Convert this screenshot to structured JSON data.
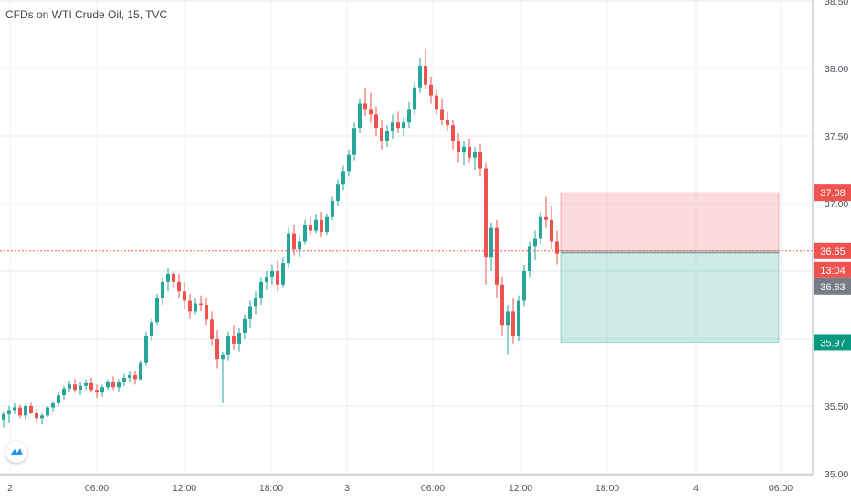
{
  "chart_data": {
    "type": "candlestick",
    "title": "CFDs on WTI Crude Oil, 15, TVC",
    "ylim": [
      35.0,
      38.5
    ],
    "y_ticks": [
      "35.00",
      "35.50",
      "36.00",
      "36.50",
      "37.00",
      "37.50",
      "38.00",
      "38.50"
    ],
    "x_ticks": [
      "2",
      "06:00",
      "12:00",
      "18:00",
      "3",
      "06:00",
      "12:00",
      "18:00",
      "4",
      "06:00"
    ],
    "current_price": "36.65",
    "countdown": "13:04",
    "close_price": "36.63",
    "position": {
      "stop_loss": "37.08",
      "entry": "36.65",
      "take_profit": "35.97"
    },
    "candles": [
      [
        35.4,
        35.46,
        35.34,
        35.44
      ],
      [
        35.44,
        35.5,
        35.38,
        35.47
      ],
      [
        35.47,
        35.52,
        35.44,
        35.49
      ],
      [
        35.49,
        35.51,
        35.41,
        35.43
      ],
      [
        35.43,
        35.52,
        35.4,
        35.5
      ],
      [
        35.5,
        35.53,
        35.44,
        35.45
      ],
      [
        35.45,
        35.48,
        35.38,
        35.41
      ],
      [
        35.41,
        35.45,
        35.37,
        35.43
      ],
      [
        35.43,
        35.5,
        35.42,
        35.49
      ],
      [
        35.49,
        35.54,
        35.46,
        35.52
      ],
      [
        35.52,
        35.6,
        35.5,
        35.58
      ],
      [
        35.58,
        35.65,
        35.55,
        35.63
      ],
      [
        35.63,
        35.69,
        35.6,
        35.66
      ],
      [
        35.66,
        35.7,
        35.6,
        35.62
      ],
      [
        35.62,
        35.68,
        35.58,
        35.65
      ],
      [
        35.65,
        35.7,
        35.62,
        35.67
      ],
      [
        35.67,
        35.71,
        35.6,
        35.62
      ],
      [
        35.62,
        35.66,
        35.56,
        35.6
      ],
      [
        35.6,
        35.66,
        35.57,
        35.64
      ],
      [
        35.64,
        35.7,
        35.62,
        35.68
      ],
      [
        35.68,
        35.72,
        35.62,
        35.64
      ],
      [
        35.64,
        35.7,
        35.61,
        35.68
      ],
      [
        35.68,
        35.74,
        35.65,
        35.71
      ],
      [
        35.71,
        35.76,
        35.68,
        35.73
      ],
      [
        35.73,
        35.76,
        35.66,
        35.7
      ],
      [
        35.7,
        35.84,
        35.69,
        35.82
      ],
      [
        35.82,
        36.05,
        35.8,
        36.02
      ],
      [
        36.02,
        36.15,
        35.98,
        36.12
      ],
      [
        36.12,
        36.33,
        36.1,
        36.3
      ],
      [
        36.3,
        36.45,
        36.25,
        36.42
      ],
      [
        36.42,
        36.52,
        36.35,
        36.48
      ],
      [
        36.48,
        36.5,
        36.38,
        36.42
      ],
      [
        36.42,
        36.48,
        36.3,
        36.35
      ],
      [
        36.35,
        36.42,
        36.22,
        36.28
      ],
      [
        36.28,
        36.33,
        36.15,
        36.2
      ],
      [
        36.2,
        36.3,
        36.18,
        36.26
      ],
      [
        36.26,
        36.32,
        36.2,
        36.25
      ],
      [
        36.25,
        36.3,
        36.1,
        36.14
      ],
      [
        36.14,
        36.2,
        35.95,
        36.0
      ],
      [
        36.0,
        36.06,
        35.78,
        35.85
      ],
      [
        35.85,
        35.9,
        35.52,
        35.88
      ],
      [
        35.88,
        36.05,
        35.84,
        36.02
      ],
      [
        36.02,
        36.1,
        35.92,
        35.96
      ],
      [
        35.96,
        36.08,
        35.9,
        36.04
      ],
      [
        36.04,
        36.18,
        36.0,
        36.15
      ],
      [
        36.15,
        36.28,
        36.08,
        36.24
      ],
      [
        36.24,
        36.35,
        36.18,
        36.3
      ],
      [
        36.3,
        36.45,
        36.25,
        36.42
      ],
      [
        36.42,
        36.5,
        36.36,
        36.46
      ],
      [
        36.46,
        36.55,
        36.4,
        36.5
      ],
      [
        36.5,
        36.58,
        36.35,
        36.4
      ],
      [
        36.4,
        36.6,
        36.38,
        36.56
      ],
      [
        36.56,
        36.82,
        36.52,
        36.78
      ],
      [
        36.78,
        36.84,
        36.62,
        36.66
      ],
      [
        36.66,
        36.76,
        36.6,
        36.72
      ],
      [
        36.72,
        36.88,
        36.7,
        36.84
      ],
      [
        36.84,
        36.9,
        36.76,
        36.8
      ],
      [
        36.8,
        36.92,
        36.78,
        36.88
      ],
      [
        36.88,
        36.94,
        36.75,
        36.79
      ],
      [
        36.79,
        36.92,
        36.77,
        36.9
      ],
      [
        36.9,
        37.05,
        36.88,
        37.02
      ],
      [
        37.02,
        37.18,
        36.98,
        37.14
      ],
      [
        37.14,
        37.28,
        37.1,
        37.24
      ],
      [
        37.24,
        37.4,
        37.2,
        37.36
      ],
      [
        37.36,
        37.6,
        37.32,
        37.56
      ],
      [
        37.56,
        37.78,
        37.52,
        37.74
      ],
      [
        37.74,
        37.86,
        37.65,
        37.7
      ],
      [
        37.7,
        37.82,
        37.6,
        37.66
      ],
      [
        37.66,
        37.72,
        37.5,
        37.56
      ],
      [
        37.56,
        37.62,
        37.4,
        37.46
      ],
      [
        37.46,
        37.58,
        37.42,
        37.54
      ],
      [
        37.54,
        37.66,
        37.48,
        37.6
      ],
      [
        37.6,
        37.68,
        37.52,
        37.56
      ],
      [
        37.56,
        37.64,
        37.5,
        37.6
      ],
      [
        37.6,
        37.75,
        37.56,
        37.7
      ],
      [
        37.7,
        37.9,
        37.66,
        37.86
      ],
      [
        37.86,
        38.08,
        37.82,
        38.02
      ],
      [
        38.02,
        38.14,
        37.85,
        37.88
      ],
      [
        37.88,
        37.94,
        37.74,
        37.8
      ],
      [
        37.8,
        37.84,
        37.66,
        37.7
      ],
      [
        37.7,
        37.78,
        37.58,
        37.62
      ],
      [
        37.62,
        37.68,
        37.54,
        37.58
      ],
      [
        37.58,
        37.62,
        37.4,
        37.46
      ],
      [
        37.46,
        37.52,
        37.3,
        37.38
      ],
      [
        37.38,
        37.46,
        37.28,
        37.42
      ],
      [
        37.42,
        37.48,
        37.3,
        37.34
      ],
      [
        37.34,
        37.42,
        37.25,
        37.38
      ],
      [
        37.38,
        37.44,
        37.2,
        37.26
      ],
      [
        37.26,
        37.3,
        36.4,
        36.6
      ],
      [
        36.6,
        36.86,
        36.5,
        36.82
      ],
      [
        36.82,
        36.88,
        36.3,
        36.4
      ],
      [
        36.4,
        36.46,
        36.02,
        36.1
      ],
      [
        36.1,
        36.25,
        35.88,
        36.2
      ],
      [
        36.2,
        36.3,
        35.96,
        36.02
      ],
      [
        36.02,
        36.32,
        35.98,
        36.28
      ],
      [
        36.28,
        36.55,
        36.24,
        36.5
      ],
      [
        36.5,
        36.72,
        36.45,
        36.68
      ],
      [
        36.68,
        36.8,
        36.58,
        36.74
      ],
      [
        36.74,
        36.94,
        36.7,
        36.9
      ],
      [
        36.9,
        37.05,
        36.82,
        36.88
      ],
      [
        36.88,
        36.98,
        36.66,
        36.72
      ],
      [
        36.72,
        36.8,
        36.55,
        36.63
      ]
    ]
  }
}
